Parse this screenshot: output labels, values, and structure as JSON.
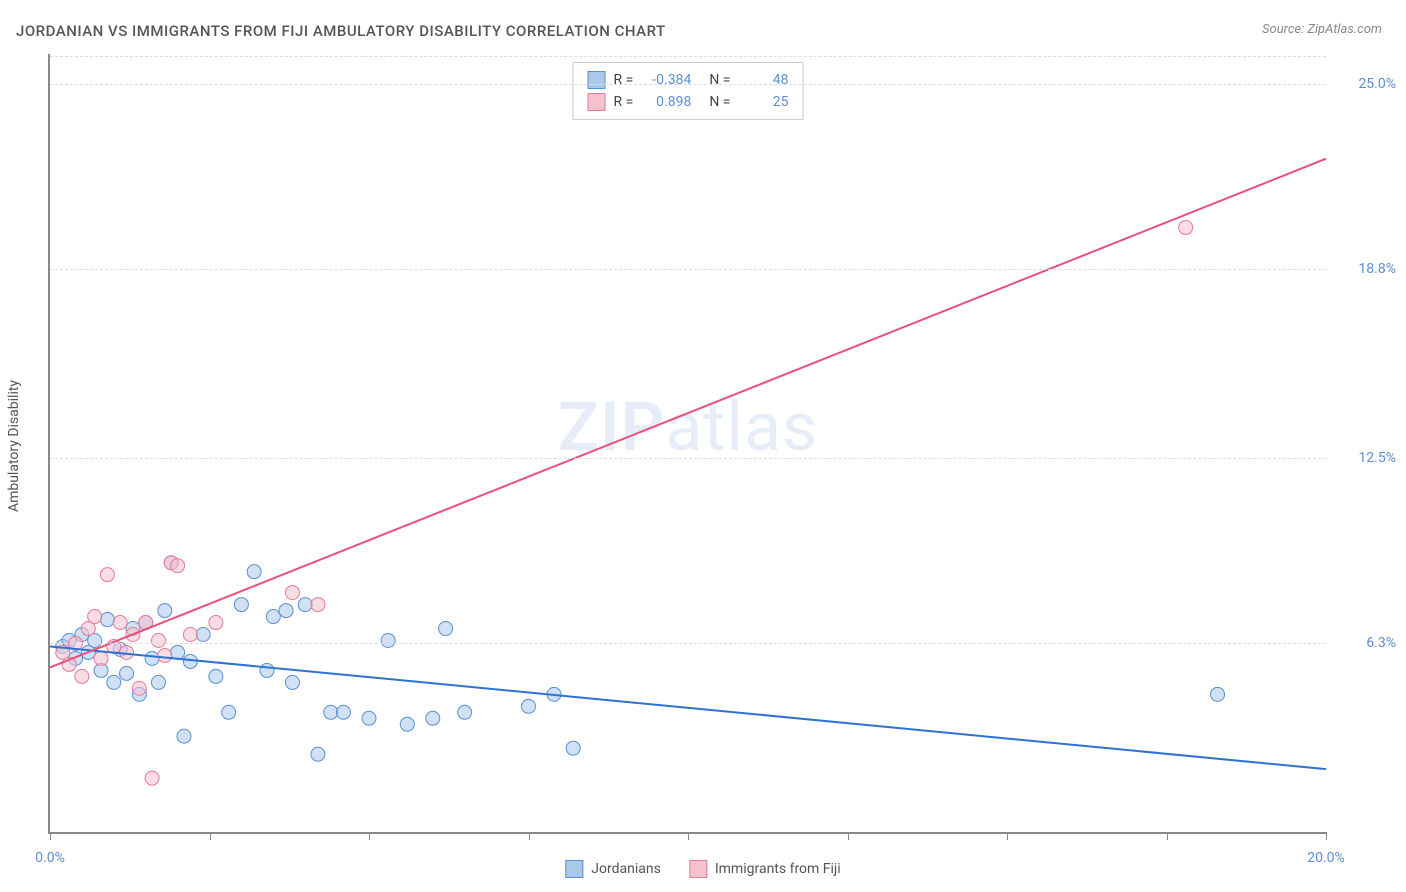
{
  "title": "JORDANIAN VS IMMIGRANTS FROM FIJI AMBULATORY DISABILITY CORRELATION CHART",
  "source": "Source: ZipAtlas.com",
  "ylabel": "Ambulatory Disability",
  "watermark_left": "ZIP",
  "watermark_right": "atlas",
  "chart": {
    "type": "scatter-with-regression",
    "xlim": [
      0,
      20
    ],
    "ylim": [
      0,
      26
    ],
    "x_tick_positions": [
      0,
      2.5,
      5,
      7.5,
      10,
      12.5,
      15,
      17.5,
      20
    ],
    "x_tick_labels_shown": {
      "0": "0.0%",
      "20": "20.0%"
    },
    "y_gridlines": [
      6.3,
      12.5,
      18.8,
      25.0
    ],
    "y_tick_labels": [
      "6.3%",
      "12.5%",
      "18.8%",
      "25.0%"
    ],
    "background_color": "#ffffff",
    "grid_color": "#dddddd",
    "axis_color": "#888888",
    "label_color": "#5b8fd6",
    "marker_radius": 7,
    "marker_opacity": 0.55,
    "line_width": 2
  },
  "series": [
    {
      "name": "Jordanians",
      "color_fill": "#a9c8ea",
      "color_stroke": "#5b8fd6",
      "line_color": "#2d73d2",
      "R": "-0.384",
      "N": "48",
      "regression": {
        "x1": 0,
        "y1": 6.2,
        "x2": 20,
        "y2": 2.1
      },
      "points": [
        [
          0.2,
          6.2
        ],
        [
          0.3,
          6.4
        ],
        [
          0.4,
          5.8
        ],
        [
          0.5,
          6.6
        ],
        [
          0.6,
          6.0
        ],
        [
          0.7,
          6.4
        ],
        [
          0.8,
          5.4
        ],
        [
          0.9,
          7.1
        ],
        [
          1.0,
          5.0
        ],
        [
          1.1,
          6.1
        ],
        [
          1.2,
          5.3
        ],
        [
          1.3,
          6.8
        ],
        [
          1.4,
          4.6
        ],
        [
          1.5,
          7.0
        ],
        [
          1.6,
          5.8
        ],
        [
          1.7,
          5.0
        ],
        [
          1.8,
          7.4
        ],
        [
          1.9,
          9.0
        ],
        [
          2.0,
          6.0
        ],
        [
          2.1,
          3.2
        ],
        [
          2.2,
          5.7
        ],
        [
          2.4,
          6.6
        ],
        [
          2.6,
          5.2
        ],
        [
          2.8,
          4.0
        ],
        [
          3.0,
          7.6
        ],
        [
          3.2,
          8.7
        ],
        [
          3.4,
          5.4
        ],
        [
          3.5,
          7.2
        ],
        [
          3.7,
          7.4
        ],
        [
          3.8,
          5.0
        ],
        [
          4.0,
          7.6
        ],
        [
          4.2,
          2.6
        ],
        [
          4.4,
          4.0
        ],
        [
          4.6,
          4.0
        ],
        [
          5.0,
          3.8
        ],
        [
          5.3,
          6.4
        ],
        [
          5.6,
          3.6
        ],
        [
          6.0,
          3.8
        ],
        [
          6.2,
          6.8
        ],
        [
          6.5,
          4.0
        ],
        [
          7.5,
          4.2
        ],
        [
          7.9,
          4.6
        ],
        [
          8.2,
          2.8
        ],
        [
          18.3,
          4.6
        ]
      ]
    },
    {
      "name": "Immigrants from Fiji",
      "color_fill": "#f4c1cf",
      "color_stroke": "#e67a9a",
      "line_color": "#e94f7b",
      "R": "0.898",
      "N": "25",
      "regression": {
        "x1": 0,
        "y1": 5.5,
        "x2": 20,
        "y2": 22.5
      },
      "points": [
        [
          0.2,
          6.0
        ],
        [
          0.3,
          5.6
        ],
        [
          0.4,
          6.3
        ],
        [
          0.5,
          5.2
        ],
        [
          0.6,
          6.8
        ],
        [
          0.7,
          7.2
        ],
        [
          0.8,
          5.8
        ],
        [
          0.9,
          8.6
        ],
        [
          1.0,
          6.2
        ],
        [
          1.1,
          7.0
        ],
        [
          1.2,
          6.0
        ],
        [
          1.3,
          6.6
        ],
        [
          1.4,
          4.8
        ],
        [
          1.5,
          7.0
        ],
        [
          1.6,
          1.8
        ],
        [
          1.7,
          6.4
        ],
        [
          1.8,
          5.9
        ],
        [
          1.9,
          9.0
        ],
        [
          2.0,
          8.9
        ],
        [
          2.2,
          6.6
        ],
        [
          2.6,
          7.0
        ],
        [
          3.8,
          8.0
        ],
        [
          4.2,
          7.6
        ],
        [
          17.8,
          20.2
        ]
      ]
    }
  ],
  "stats_labels": {
    "R": "R =",
    "N": "N ="
  },
  "legend": {
    "series1": "Jordanians",
    "series2": "Immigrants from Fiji"
  }
}
